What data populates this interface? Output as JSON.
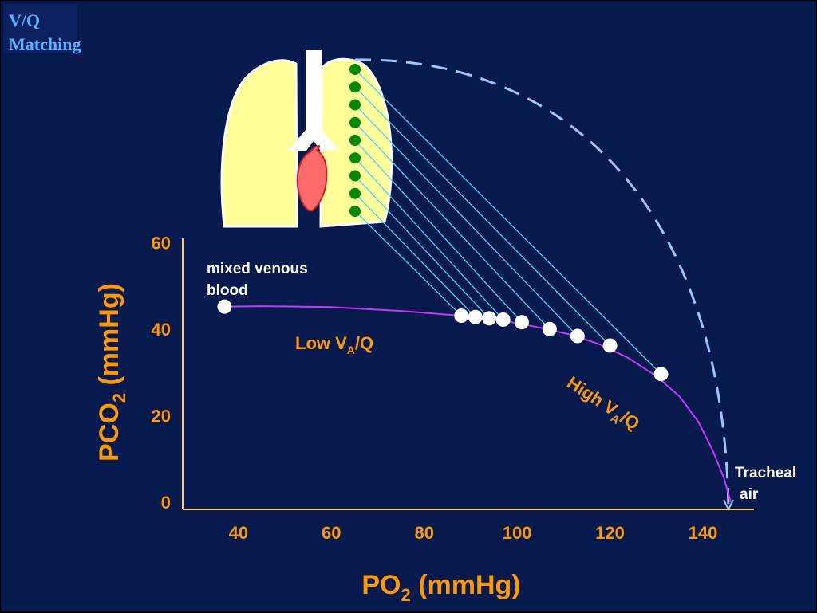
{
  "slide": {
    "title_line1": "V/Q",
    "title_line2": "Matching"
  },
  "colors": {
    "background": "#061a4e",
    "title": "#58b4ff",
    "axis_text": "#ff9900",
    "curve": "#cc33ff",
    "dashed_arc": "#9fc4ff",
    "lung": "#ffff99",
    "heart": "#ff6b6b",
    "alveoli": "#008800",
    "connectors": "#49d6ff",
    "points": "#ffffff"
  },
  "chart_data": {
    "type": "line",
    "x_axis": {
      "title_main": "PO",
      "title_sub": "2",
      "title_unit": "(mmHg)",
      "ticks": [
        40,
        60,
        80,
        100,
        120,
        140
      ],
      "range": [
        28,
        151
      ]
    },
    "y_axis": {
      "title_main": "PCO",
      "title_sub": "2",
      "title_unit": "(mmHg)",
      "ticks": [
        0,
        20,
        40,
        60
      ],
      "range": [
        -1.7,
        61
      ]
    },
    "series": [
      {
        "kind": "VA/Q line",
        "curve": [
          [
            37,
            45.2
          ],
          [
            45,
            45.3
          ],
          [
            60,
            45.1
          ],
          [
            75,
            44.2
          ],
          [
            88,
            43.1
          ],
          [
            95,
            42.2
          ],
          [
            100,
            41.4
          ],
          [
            106,
            40.1
          ],
          [
            112,
            38.6
          ],
          [
            118,
            36.4
          ],
          [
            124,
            33.3
          ],
          [
            130,
            29.1
          ],
          [
            135,
            24.4
          ],
          [
            139,
            18.6
          ],
          [
            142,
            12.2
          ],
          [
            144.5,
            5.6
          ],
          [
            146,
            0
          ]
        ],
        "points": [
          [
            37,
            45.2
          ],
          [
            88,
            43.1
          ],
          [
            91,
            42.8
          ],
          [
            94,
            42.5
          ],
          [
            97,
            42.2
          ],
          [
            101,
            41.6
          ],
          [
            107,
            40.0
          ],
          [
            113,
            38.4
          ],
          [
            120,
            36.2
          ],
          [
            131,
            29.6
          ]
        ]
      }
    ],
    "annotations": {
      "mixed_venous_line1": "mixed venous",
      "mixed_venous_line2": "blood",
      "low_main": "Low V",
      "low_sub": "A",
      "low_rest": "/Q",
      "high_main": "High V",
      "high_sub": "A",
      "high_rest": "/Q",
      "tracheal_line1": "Tracheal",
      "tracheal_line2": "air"
    },
    "grid": false,
    "legend": "none"
  },
  "diagram": {
    "alveoli_count": 9,
    "icons": [
      "lungs-icon",
      "trachea-icon",
      "heart-icon"
    ]
  }
}
